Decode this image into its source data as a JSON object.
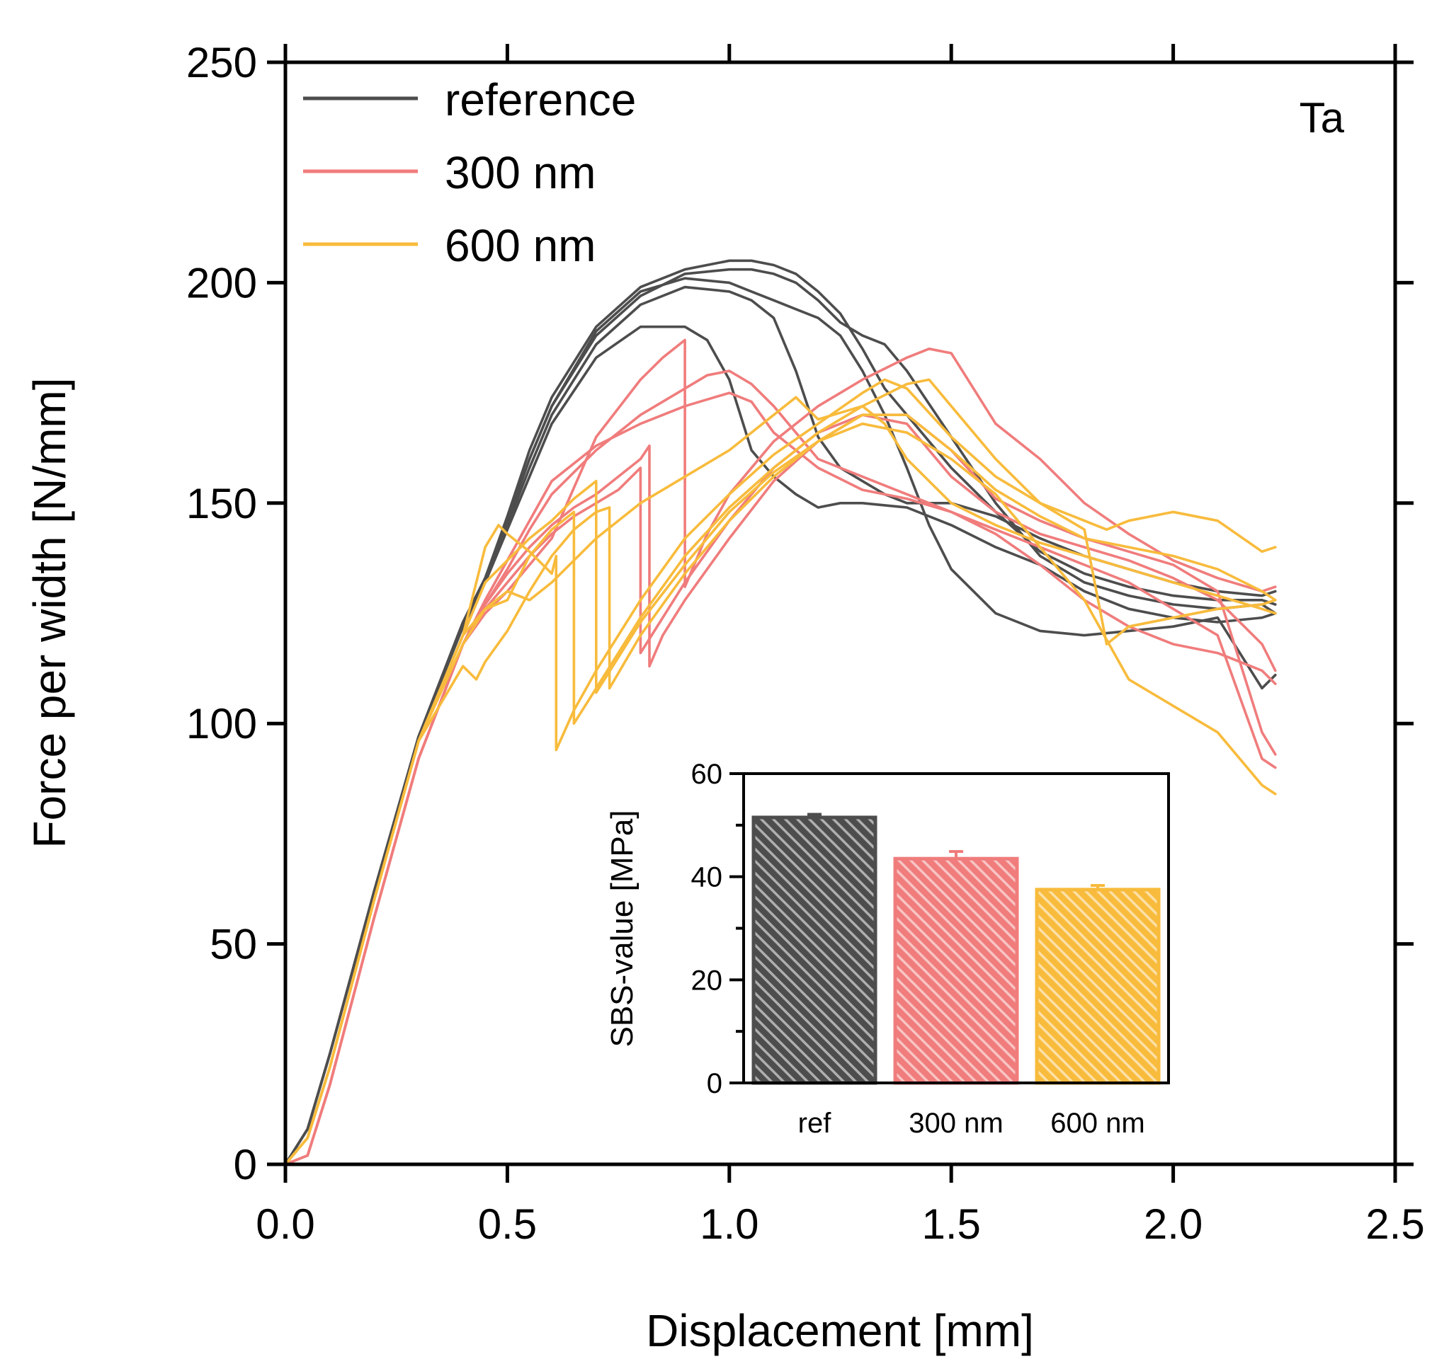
{
  "chart_data": [
    {
      "type": "line",
      "panel_label": "Ta",
      "xlabel": "Displacement [mm]",
      "ylabel": "Force per width [N/mm]",
      "xlim": [
        0.0,
        2.5
      ],
      "ylim": [
        0,
        250
      ],
      "x_ticks": [
        0.0,
        0.5,
        1.0,
        1.5,
        2.0,
        2.5
      ],
      "x_tick_labels": [
        "0.0",
        "0.5",
        "1.0",
        "1.5",
        "2.0",
        "2.5"
      ],
      "y_ticks": [
        0,
        50,
        100,
        150,
        200,
        250
      ],
      "y_tick_labels": [
        "0",
        "50",
        "100",
        "150",
        "200",
        "250"
      ],
      "legend_position": "top-left",
      "grid": false,
      "series": [
        {
          "name": "reference",
          "group": "reference",
          "color": "#4d4d4d",
          "x": [
            0,
            0.05,
            0.1,
            0.2,
            0.3,
            0.4,
            0.45,
            0.5,
            0.55,
            0.6,
            0.7,
            0.8,
            0.9,
            1.0,
            1.05,
            1.1,
            1.15,
            1.2,
            1.25,
            1.3,
            1.35,
            1.4,
            1.5,
            1.6,
            1.7,
            1.8,
            1.9,
            2.0,
            2.1,
            2.2,
            2.23
          ],
          "y": [
            0,
            8,
            25,
            62,
            97,
            123,
            133,
            147,
            162,
            174,
            190,
            199,
            203,
            205,
            205,
            204,
            202,
            198,
            193,
            185,
            176,
            170,
            158,
            148,
            139,
            134,
            131,
            129,
            128,
            128,
            127
          ]
        },
        {
          "name": "reference",
          "group": "reference",
          "color": "#4d4d4d",
          "x": [
            0,
            0.05,
            0.1,
            0.2,
            0.3,
            0.4,
            0.45,
            0.5,
            0.55,
            0.6,
            0.7,
            0.8,
            0.9,
            1.0,
            1.05,
            1.1,
            1.15,
            1.2,
            1.25,
            1.3,
            1.35,
            1.4,
            1.5,
            1.6,
            1.7,
            1.8,
            1.9,
            2.0,
            2.1,
            2.2,
            2.23
          ],
          "y": [
            0,
            8,
            25,
            62,
            97,
            123,
            133,
            146,
            160,
            172,
            188,
            197,
            202,
            203,
            203,
            202,
            200,
            196,
            191,
            188,
            186,
            180,
            165,
            150,
            138,
            132,
            129,
            127,
            126,
            127,
            125
          ]
        },
        {
          "name": "reference",
          "group": "reference",
          "color": "#4d4d4d",
          "x": [
            0,
            0.05,
            0.1,
            0.2,
            0.3,
            0.4,
            0.45,
            0.5,
            0.55,
            0.6,
            0.7,
            0.8,
            0.9,
            1.0,
            1.05,
            1.1,
            1.15,
            1.2,
            1.25,
            1.3,
            1.35,
            1.4,
            1.5,
            1.6,
            1.7,
            1.8,
            1.9,
            2.0,
            2.1,
            2.2,
            2.23
          ],
          "y": [
            0,
            8,
            25,
            62,
            97,
            122,
            132,
            145,
            158,
            170,
            186,
            195,
            199,
            198,
            196,
            192,
            180,
            165,
            158,
            155,
            152,
            150,
            150,
            147,
            142,
            138,
            135,
            132,
            130,
            129,
            130
          ]
        },
        {
          "name": "reference",
          "group": "reference",
          "color": "#4d4d4d",
          "x": [
            0,
            0.05,
            0.1,
            0.2,
            0.3,
            0.4,
            0.45,
            0.5,
            0.55,
            0.6,
            0.7,
            0.8,
            0.9,
            0.95,
            1.0,
            1.05,
            1.1,
            1.15,
            1.2,
            1.25,
            1.3,
            1.4,
            1.5,
            1.6,
            1.7,
            1.8,
            1.9,
            2.0,
            2.1,
            2.2,
            2.23
          ],
          "y": [
            0,
            8,
            25,
            62,
            97,
            122,
            132,
            144,
            156,
            168,
            183,
            190,
            190,
            187,
            178,
            162,
            156,
            152,
            149,
            150,
            150,
            149,
            145,
            140,
            136,
            130,
            126,
            124,
            123,
            124,
            125
          ]
        },
        {
          "name": "reference",
          "group": "reference",
          "color": "#4d4d4d",
          "x": [
            0,
            0.05,
            0.1,
            0.2,
            0.3,
            0.4,
            0.45,
            0.5,
            0.55,
            0.6,
            0.7,
            0.8,
            0.9,
            1.0,
            1.05,
            1.1,
            1.15,
            1.2,
            1.25,
            1.3,
            1.35,
            1.4,
            1.45,
            1.5,
            1.6,
            1.7,
            1.8,
            1.9,
            2.0,
            2.1,
            2.2,
            2.23
          ],
          "y": [
            0,
            8,
            25,
            62,
            97,
            122,
            133,
            146,
            160,
            172,
            189,
            198,
            201,
            200,
            198,
            196,
            194,
            192,
            188,
            180,
            170,
            158,
            145,
            135,
            125,
            121,
            120,
            121,
            122,
            124,
            108,
            111
          ]
        },
        {
          "name": "300 nm",
          "group": "300 nm",
          "color": "#f07c7c",
          "x": [
            0,
            0.05,
            0.1,
            0.2,
            0.3,
            0.4,
            0.45,
            0.5,
            0.55,
            0.6,
            0.7,
            0.8,
            0.85,
            0.9,
            0.9,
            0.95,
            1.0,
            1.1,
            1.2,
            1.3,
            1.4,
            1.45,
            1.5,
            1.6,
            1.7,
            1.8,
            1.9,
            2.0,
            2.1,
            2.2,
            2.23
          ],
          "y": [
            0,
            2,
            18,
            56,
            92,
            118,
            125,
            130,
            136,
            142,
            165,
            178,
            183,
            187,
            131,
            143,
            152,
            164,
            172,
            178,
            183,
            185,
            184,
            168,
            160,
            150,
            143,
            137,
            133,
            130,
            131
          ]
        },
        {
          "name": "300 nm",
          "group": "300 nm",
          "color": "#f07c7c",
          "x": [
            0,
            0.05,
            0.1,
            0.2,
            0.3,
            0.4,
            0.45,
            0.5,
            0.55,
            0.6,
            0.65,
            0.7,
            0.75,
            0.8,
            0.8,
            0.85,
            0.9,
            1.0,
            1.1,
            1.2,
            1.3,
            1.4,
            1.5,
            1.6,
            1.7,
            1.8,
            1.9,
            2.0,
            2.1,
            2.2,
            2.23
          ],
          "y": [
            0,
            2,
            18,
            56,
            92,
            118,
            126,
            132,
            138,
            143,
            147,
            150,
            153,
            158,
            116,
            124,
            132,
            146,
            158,
            166,
            170,
            168,
            156,
            148,
            143,
            140,
            137,
            133,
            128,
            118,
            112
          ]
        },
        {
          "name": "300 nm",
          "group": "300 nm",
          "color": "#f07c7c",
          "x": [
            0,
            0.05,
            0.1,
            0.2,
            0.3,
            0.4,
            0.45,
            0.5,
            0.55,
            0.6,
            0.65,
            0.7,
            0.75,
            0.8,
            0.82,
            0.82,
            0.85,
            0.9,
            1.0,
            1.1,
            1.2,
            1.3,
            1.4,
            1.5,
            1.6,
            1.7,
            1.8,
            1.9,
            2.0,
            2.1,
            2.2,
            2.23
          ],
          "y": [
            0,
            2,
            18,
            56,
            92,
            118,
            127,
            134,
            140,
            145,
            149,
            152,
            156,
            160,
            163,
            113,
            120,
            128,
            142,
            155,
            164,
            170,
            170,
            162,
            151,
            146,
            142,
            139,
            136,
            130,
            98,
            93
          ]
        },
        {
          "name": "300 nm",
          "group": "300 nm",
          "color": "#f07c7c",
          "x": [
            0,
            0.05,
            0.1,
            0.2,
            0.3,
            0.4,
            0.45,
            0.5,
            0.55,
            0.6,
            0.7,
            0.8,
            0.9,
            0.95,
            1.0,
            1.05,
            1.1,
            1.15,
            1.2,
            1.3,
            1.4,
            1.5,
            1.6,
            1.7,
            1.8,
            1.9,
            2.0,
            2.1,
            2.2,
            2.23
          ],
          "y": [
            0,
            2,
            18,
            56,
            92,
            118,
            127,
            135,
            144,
            152,
            162,
            170,
            176,
            179,
            180,
            177,
            172,
            166,
            160,
            156,
            152,
            148,
            143,
            136,
            128,
            122,
            118,
            116,
            112,
            109
          ]
        },
        {
          "name": "300 nm",
          "group": "300 nm",
          "color": "#f07c7c",
          "x": [
            0,
            0.05,
            0.1,
            0.2,
            0.3,
            0.4,
            0.45,
            0.5,
            0.55,
            0.6,
            0.7,
            0.8,
            0.9,
            1.0,
            1.05,
            1.1,
            1.2,
            1.3,
            1.4,
            1.5,
            1.6,
            1.7,
            1.8,
            1.9,
            2.0,
            2.1,
            2.2,
            2.23
          ],
          "y": [
            0,
            2,
            18,
            56,
            92,
            118,
            128,
            137,
            146,
            155,
            163,
            168,
            172,
            175,
            173,
            166,
            158,
            153,
            151,
            148,
            144,
            140,
            136,
            132,
            126,
            120,
            92,
            90
          ]
        },
        {
          "name": "600 nm",
          "group": "600 nm",
          "color": "#f8bb3c",
          "x": [
            0,
            0.05,
            0.1,
            0.2,
            0.3,
            0.4,
            0.45,
            0.48,
            0.5,
            0.55,
            0.6,
            0.61,
            0.61,
            0.65,
            0.7,
            0.8,
            0.9,
            1.0,
            1.1,
            1.2,
            1.3,
            1.35,
            1.4,
            1.5,
            1.6,
            1.7,
            1.8,
            1.85,
            1.9,
            2.0,
            2.1,
            2.2,
            2.23
          ],
          "y": [
            0,
            6,
            22,
            60,
            96,
            120,
            140,
            145,
            143,
            139,
            134,
            138,
            94,
            103,
            112,
            128,
            142,
            152,
            161,
            168,
            175,
            178,
            176,
            165,
            156,
            150,
            146,
            144,
            146,
            148,
            146,
            139,
            140
          ]
        },
        {
          "name": "600 nm",
          "group": "600 nm",
          "color": "#f8bb3c",
          "x": [
            0,
            0.05,
            0.1,
            0.2,
            0.3,
            0.4,
            0.45,
            0.5,
            0.55,
            0.6,
            0.65,
            0.65,
            0.7,
            0.75,
            0.8,
            0.9,
            1.0,
            1.1,
            1.2,
            1.3,
            1.4,
            1.45,
            1.5,
            1.6,
            1.7,
            1.8,
            1.85,
            1.9,
            2.0,
            2.1,
            2.2,
            2.23
          ],
          "y": [
            0,
            6,
            22,
            60,
            96,
            120,
            126,
            128,
            138,
            144,
            148,
            100,
            108,
            116,
            124,
            138,
            149,
            158,
            166,
            172,
            177,
            178,
            172,
            160,
            150,
            144,
            118,
            122,
            124,
            126,
            127,
            128
          ]
        },
        {
          "name": "600 nm",
          "group": "600 nm",
          "color": "#f8bb3c",
          "x": [
            0,
            0.05,
            0.1,
            0.2,
            0.3,
            0.4,
            0.45,
            0.5,
            0.55,
            0.6,
            0.65,
            0.7,
            0.7,
            0.75,
            0.8,
            0.9,
            1.0,
            1.1,
            1.2,
            1.3,
            1.4,
            1.5,
            1.6,
            1.7,
            1.8,
            1.9,
            2.0,
            2.1,
            2.2,
            2.23
          ],
          "y": [
            0,
            6,
            22,
            60,
            96,
            120,
            132,
            137,
            142,
            146,
            151,
            155,
            107,
            115,
            123,
            136,
            148,
            157,
            164,
            168,
            166,
            160,
            152,
            140,
            128,
            110,
            104,
            98,
            86,
            84
          ]
        },
        {
          "name": "600 nm",
          "group": "600 nm",
          "color": "#f8bb3c",
          "x": [
            0,
            0.05,
            0.1,
            0.2,
            0.3,
            0.4,
            0.43,
            0.45,
            0.5,
            0.55,
            0.6,
            0.65,
            0.7,
            0.73,
            0.73,
            0.8,
            0.9,
            1.0,
            1.1,
            1.2,
            1.3,
            1.4,
            1.5,
            1.6,
            1.7,
            1.8,
            1.9,
            2.0,
            2.1,
            2.2,
            2.23
          ],
          "y": [
            0,
            6,
            22,
            60,
            96,
            113,
            110,
            114,
            121,
            130,
            138,
            144,
            148,
            149,
            108,
            120,
            134,
            146,
            156,
            164,
            170,
            170,
            162,
            153,
            147,
            142,
            140,
            138,
            135,
            130,
            128
          ]
        },
        {
          "name": "600 nm",
          "group": "600 nm",
          "color": "#f8bb3c",
          "x": [
            0,
            0.05,
            0.1,
            0.2,
            0.3,
            0.4,
            0.45,
            0.5,
            0.55,
            0.6,
            0.7,
            0.8,
            0.9,
            1.0,
            1.1,
            1.15,
            1.2,
            1.3,
            1.35,
            1.4,
            1.5,
            1.6,
            1.7,
            1.8,
            1.9,
            2.0,
            2.1,
            2.2,
            2.23
          ],
          "y": [
            0,
            6,
            22,
            60,
            96,
            118,
            126,
            130,
            128,
            132,
            142,
            150,
            156,
            162,
            170,
            174,
            169,
            172,
            168,
            160,
            150,
            145,
            141,
            138,
            135,
            132,
            129,
            126,
            125
          ]
        }
      ]
    },
    {
      "type": "bar",
      "categories": [
        "ref",
        "300 nm",
        "600 nm"
      ],
      "values": [
        51.5,
        43.5,
        37.5
      ],
      "errors": [
        0.6,
        1.4,
        0.8
      ],
      "colors": [
        "#4d4d4d",
        "#f07c7c",
        "#f8bb3c"
      ],
      "pattern": "diagonal hatch",
      "ylabel": "SBS-value [MPa]",
      "xlabel": "",
      "ylim": [
        0,
        60
      ],
      "y_ticks": [
        0,
        20,
        40,
        60
      ],
      "y_tick_labels": [
        "0",
        "20",
        "40",
        "60"
      ],
      "position": "inset, lower-right"
    }
  ]
}
